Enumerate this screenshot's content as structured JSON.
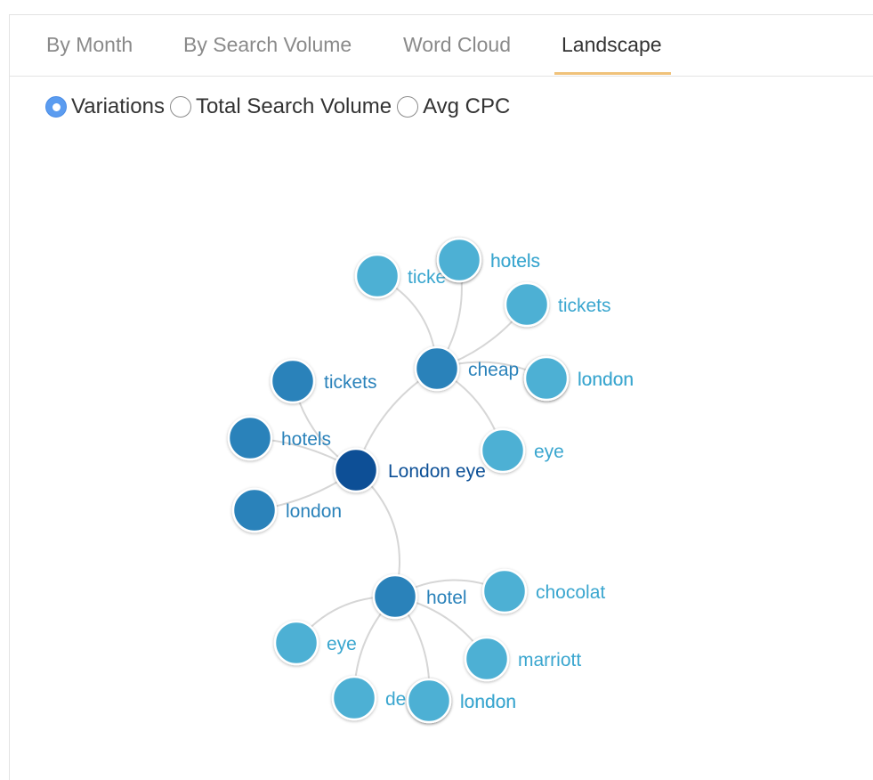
{
  "tabs": [
    {
      "label": "By Month",
      "active": false
    },
    {
      "label": "By Search Volume",
      "active": false
    },
    {
      "label": "Word Cloud",
      "active": false
    },
    {
      "label": "Landscape",
      "active": true
    }
  ],
  "metric_options": [
    {
      "label": "Variations",
      "checked": true
    },
    {
      "label": "Total Search Volume",
      "checked": false
    },
    {
      "label": "Avg CPC",
      "checked": false
    }
  ],
  "colors": {
    "root_node": "#0b4f96",
    "level1_node": "#2a82ba",
    "leaf_node": "#4db0d4",
    "root_label": "#0b4f96",
    "level1_label": "#2a82ba",
    "leaf_label": "#3aa6cf",
    "link": "#d6d6d6",
    "tab_underline": "#f0c27a",
    "radio_checked": "#5b9cf0"
  },
  "graph": {
    "nodes": {
      "root": {
        "label": "London eye",
        "level": 0
      },
      "cheap": {
        "label": "cheap",
        "level": 1
      },
      "hotel": {
        "label": "hotel",
        "level": 1
      },
      "tickets_l1": {
        "label": "tickets",
        "level": 1
      },
      "hotels_l1": {
        "label": "hotels",
        "level": 1
      },
      "london_l1": {
        "label": "london",
        "level": 1
      },
      "cheap_ticke": {
        "label": "ticke",
        "level": 2
      },
      "cheap_hotels": {
        "label": "hotels",
        "level": 2
      },
      "cheap_tickets": {
        "label": "tickets",
        "level": 2
      },
      "cheap_london": {
        "label": "london",
        "level": 2
      },
      "cheap_eye": {
        "label": "eye",
        "level": 2
      },
      "hotel_chocolat": {
        "label": "chocolat",
        "level": 2
      },
      "hotel_marriott": {
        "label": "marriott",
        "level": 2
      },
      "hotel_london": {
        "label": "london",
        "level": 2
      },
      "hotel_de": {
        "label": "de",
        "level": 2
      },
      "hotel_eye": {
        "label": "eye",
        "level": 2
      }
    },
    "links": [
      [
        "root",
        "cheap"
      ],
      [
        "root",
        "hotel"
      ],
      [
        "root",
        "tickets_l1"
      ],
      [
        "root",
        "hotels_l1"
      ],
      [
        "root",
        "london_l1"
      ],
      [
        "cheap",
        "cheap_ticke"
      ],
      [
        "cheap",
        "cheap_hotels"
      ],
      [
        "cheap",
        "cheap_tickets"
      ],
      [
        "cheap",
        "cheap_london"
      ],
      [
        "cheap",
        "cheap_eye"
      ],
      [
        "hotel",
        "hotel_chocolat"
      ],
      [
        "hotel",
        "hotel_marriott"
      ],
      [
        "hotel",
        "hotel_london"
      ],
      [
        "hotel",
        "hotel_de"
      ],
      [
        "hotel",
        "hotel_eye"
      ]
    ]
  }
}
